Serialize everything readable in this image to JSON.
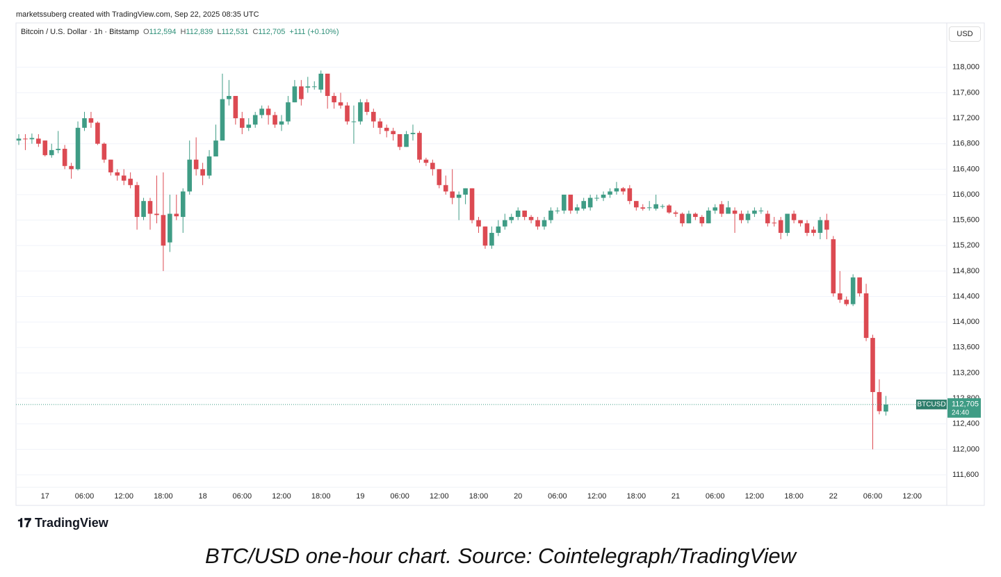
{
  "credit": "marketssuberg created with TradingView.com, Sep 22, 2025 08:35 UTC",
  "logo": "TradingView",
  "caption": "BTC/USD one-hour chart. Source: Cointelegraph/TradingView",
  "chart_data": {
    "type": "candlestick",
    "symbol": "Bitcoin / U.S. Dollar · 1h · Bitstamp",
    "readout": [
      {
        "label": "O",
        "value": "112,594"
      },
      {
        "label": "H",
        "value": "112,839"
      },
      {
        "label": "L",
        "value": "112,531"
      },
      {
        "label": "C",
        "value": "112,705"
      }
    ],
    "change": "+111 (+0.10%)",
    "currency": "USD",
    "ticker": "BTCUSD",
    "last_price": "112,705",
    "countdown": "24:40",
    "up_color": "#3f9c85",
    "down_color": "#dc4a52",
    "grid": true,
    "ylim": [
      111120,
      118380
    ],
    "yticks": [
      {
        "value": 111600,
        "label": "111,600"
      },
      {
        "value": 112000,
        "label": "112,000"
      },
      {
        "value": 112400,
        "label": "112,400"
      },
      {
        "value": 112800,
        "label": "112,800"
      },
      {
        "value": 113200,
        "label": "113,200"
      },
      {
        "value": 113600,
        "label": "113,600"
      },
      {
        "value": 114000,
        "label": "114,000"
      },
      {
        "value": 114400,
        "label": "114,400"
      },
      {
        "value": 114800,
        "label": "114,800"
      },
      {
        "value": 115200,
        "label": "115,200"
      },
      {
        "value": 115600,
        "label": "115,600"
      },
      {
        "value": 116000,
        "label": "116,000"
      },
      {
        "value": 116400,
        "label": "116,400"
      },
      {
        "value": 116800,
        "label": "116,800"
      },
      {
        "value": 117200,
        "label": "117,200"
      },
      {
        "value": 117600,
        "label": "117,600"
      },
      {
        "value": 118000,
        "label": "118,000"
      }
    ],
    "categories": [
      null,
      null,
      null,
      null,
      "17",
      null,
      null,
      null,
      null,
      null,
      "06:00",
      null,
      null,
      null,
      null,
      null,
      "12:00",
      null,
      null,
      null,
      null,
      null,
      "18:00",
      null,
      null,
      null,
      null,
      null,
      "18",
      null,
      null,
      null,
      null,
      null,
      "06:00",
      null,
      null,
      null,
      null,
      null,
      "12:00",
      null,
      null,
      null,
      null,
      null,
      "18:00",
      null,
      null,
      null,
      null,
      null,
      "19",
      null,
      null,
      null,
      null,
      null,
      "06:00",
      null,
      null,
      null,
      null,
      null,
      "12:00",
      null,
      null,
      null,
      null,
      null,
      "18:00",
      null,
      null,
      null,
      null,
      null,
      "20",
      null,
      null,
      null,
      null,
      null,
      "06:00",
      null,
      null,
      null,
      null,
      null,
      "12:00",
      null,
      null,
      null,
      null,
      null,
      "18:00",
      null,
      null,
      null,
      null,
      null,
      "21",
      null,
      null,
      null,
      null,
      null,
      "06:00",
      null,
      null,
      null,
      null,
      null,
      "12:00",
      null,
      null,
      null,
      null,
      null,
      "18:00",
      null,
      null,
      null,
      null,
      null,
      "22",
      null,
      null,
      null,
      null,
      null,
      "06:00",
      null,
      null,
      null,
      null,
      null,
      "12:00"
    ],
    "open": [
      116850,
      116880,
      116870,
      116880,
      116850,
      116620,
      116700,
      116720,
      116450,
      116400,
      117050,
      117200,
      117130,
      116800,
      116550,
      116350,
      116300,
      116250,
      116150,
      115650,
      115900,
      115700,
      115680,
      115250,
      115700,
      115650,
      116050,
      116550,
      116400,
      116300,
      116600,
      116850,
      117500,
      117550,
      117200,
      117050,
      117100,
      117250,
      117350,
      117250,
      117100,
      117150,
      117450,
      117700,
      117680,
      117690,
      117650,
      117900,
      117550,
      117450,
      117400,
      117140,
      117150,
      117450,
      117300,
      117150,
      117050,
      117000,
      116950,
      116750,
      116950,
      116970,
      116550,
      116500,
      116400,
      116150,
      116050,
      115950,
      116000,
      116100,
      115600,
      115500,
      115200,
      115400,
      115500,
      115600,
      115650,
      115750,
      115650,
      115600,
      115500,
      115600,
      115740,
      115750,
      116000,
      115750,
      115780,
      115800,
      115940,
      115950,
      116000,
      116050,
      116100,
      116100,
      115900,
      115800,
      115790,
      115780,
      115810,
      115830,
      115720,
      115700,
      115550,
      115700,
      115650,
      115550,
      115750,
      115850,
      115700,
      115750,
      115700,
      115600,
      115700,
      115740,
      115700,
      115560,
      115600,
      115400,
      115700,
      115600,
      115550,
      115450,
      115400,
      115600,
      115300,
      114450,
      114350,
      114280,
      114700,
      114450,
      113750,
      112900,
      112594,
      null,
      null,
      null,
      null
    ],
    "high": [
      116950,
      116950,
      116960,
      116950,
      116850,
      116800,
      117000,
      116780,
      116500,
      117150,
      117300,
      117300,
      117150,
      116820,
      116550,
      116400,
      116400,
      116350,
      116200,
      115950,
      115950,
      116300,
      116350,
      116000,
      116000,
      116100,
      116850,
      116900,
      116500,
      116700,
      117100,
      117900,
      117800,
      117550,
      117300,
      117200,
      117300,
      117400,
      117400,
      117300,
      117250,
      117550,
      117800,
      117800,
      117850,
      117780,
      117950,
      117900,
      117600,
      117600,
      117450,
      117400,
      117500,
      117500,
      117350,
      117200,
      117100,
      117050,
      116950,
      117000,
      117100,
      117000,
      116580,
      116550,
      116400,
      116300,
      116400,
      116050,
      116100,
      116100,
      115650,
      115500,
      115500,
      115600,
      115700,
      115700,
      115800,
      115750,
      115680,
      115650,
      115650,
      115800,
      115800,
      116000,
      116000,
      115850,
      115950,
      116000,
      116000,
      116050,
      116100,
      116200,
      116120,
      116150,
      115900,
      115850,
      115900,
      116000,
      115850,
      115850,
      115750,
      115720,
      115750,
      115720,
      115680,
      115800,
      115850,
      115900,
      115900,
      115800,
      115750,
      115750,
      115800,
      115800,
      115750,
      115650,
      115650,
      115700,
      115750,
      115600,
      115600,
      115500,
      115650,
      115700,
      115350,
      114800,
      114400,
      114750,
      114700,
      114600,
      113800,
      113100,
      112839,
      null,
      null,
      null,
      null
    ],
    "low": [
      116780,
      116700,
      116800,
      116750,
      116600,
      116580,
      116650,
      116400,
      116250,
      116380,
      117000,
      117050,
      116780,
      116500,
      116300,
      116220,
      116150,
      116100,
      115450,
      115600,
      115450,
      115550,
      114800,
      115100,
      115600,
      115400,
      116000,
      116300,
      116150,
      116250,
      116600,
      116850,
      117400,
      117100,
      116950,
      117000,
      117050,
      117200,
      117100,
      117050,
      117000,
      117100,
      117450,
      117400,
      117600,
      117650,
      117600,
      117350,
      117350,
      117350,
      117100,
      116800,
      117100,
      117250,
      117050,
      116950,
      116900,
      116850,
      116700,
      116750,
      116850,
      116500,
      116450,
      116300,
      116100,
      116000,
      115850,
      115600,
      115850,
      115550,
      115400,
      115150,
      115150,
      115350,
      115450,
      115550,
      115600,
      115600,
      115550,
      115450,
      115450,
      115550,
      115700,
      115700,
      115700,
      115700,
      115750,
      115750,
      115900,
      115900,
      115950,
      116000,
      116000,
      115850,
      115750,
      115750,
      115750,
      115750,
      115780,
      115700,
      115650,
      115500,
      115550,
      115600,
      115500,
      115550,
      115700,
      115650,
      115700,
      115400,
      115550,
      115550,
      115650,
      115700,
      115500,
      115500,
      115300,
      115350,
      115550,
      115500,
      115350,
      115350,
      115300,
      115300,
      114400,
      114300,
      114250,
      114250,
      114400,
      113700,
      112000,
      112550,
      112531,
      null,
      null,
      null,
      null
    ],
    "close": [
      116880,
      116870,
      116890,
      116800,
      116620,
      116700,
      116720,
      116450,
      116400,
      117050,
      117200,
      117130,
      116800,
      116550,
      116350,
      116300,
      116220,
      116150,
      115650,
      115900,
      115700,
      115680,
      115200,
      115700,
      115660,
      116050,
      116550,
      116400,
      116300,
      116600,
      116850,
      117500,
      117550,
      117200,
      117050,
      117100,
      117250,
      117350,
      117250,
      117100,
      117150,
      117450,
      117700,
      117500,
      117700,
      117700,
      117900,
      117550,
      117450,
      117400,
      117150,
      117150,
      117450,
      117300,
      117150,
      117050,
      117000,
      116950,
      116750,
      116950,
      116970,
      116550,
      116500,
      116400,
      116150,
      116050,
      115950,
      116000,
      116100,
      115600,
      115500,
      115200,
      115400,
      115500,
      115600,
      115650,
      115750,
      115650,
      115600,
      115500,
      115600,
      115750,
      115750,
      116000,
      115750,
      115800,
      115900,
      115950,
      115950,
      116000,
      116050,
      116100,
      116050,
      115900,
      115800,
      115780,
      115800,
      115850,
      115820,
      115720,
      115700,
      115550,
      115700,
      115650,
      115550,
      115750,
      115800,
      115700,
      115800,
      115700,
      115600,
      115700,
      115750,
      115750,
      115550,
      115550,
      115400,
      115700,
      115600,
      115550,
      115400,
      115400,
      115600,
      115450,
      114450,
      114350,
      114280,
      114700,
      114450,
      113750,
      112900,
      112600,
      112705,
      null,
      null,
      null,
      null
    ]
  }
}
